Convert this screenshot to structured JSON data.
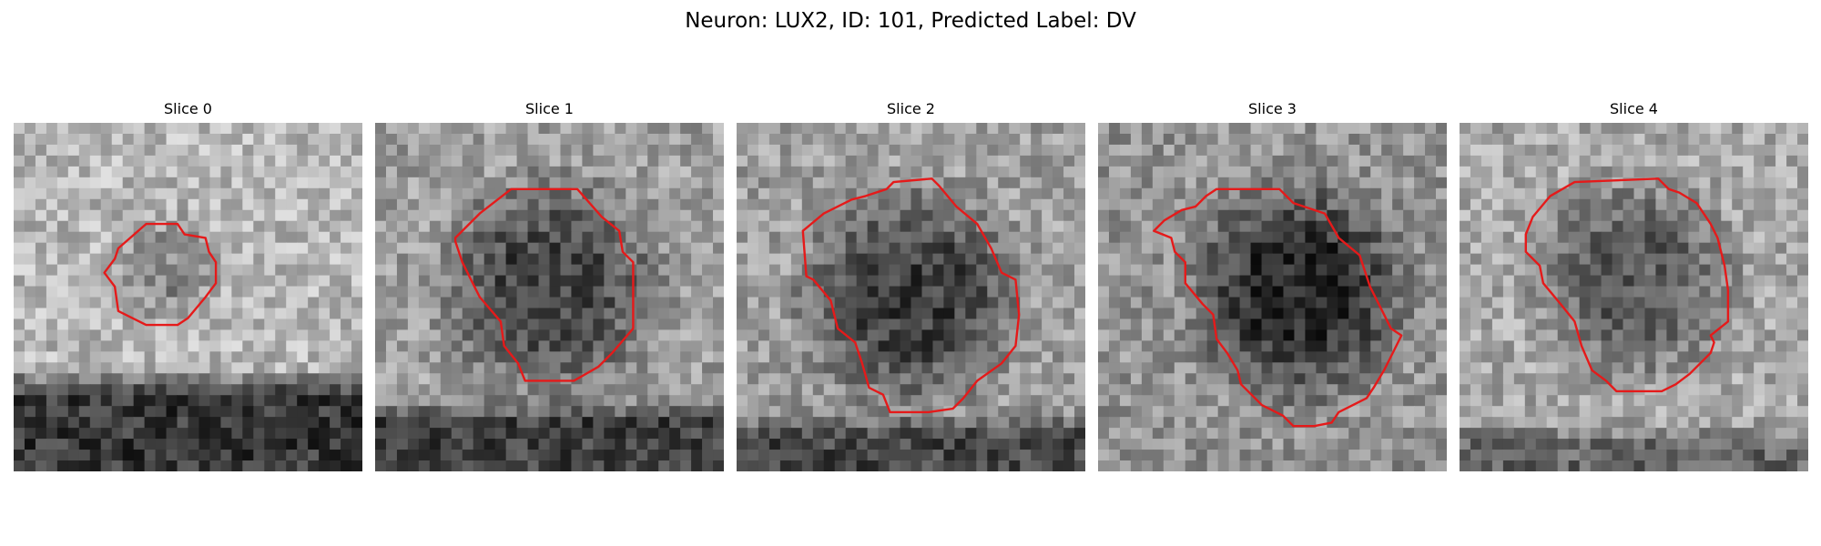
{
  "figure": {
    "title": "Neuron: LUX2, ID: 101, Predicted Label: DV"
  },
  "colors": {
    "contour": "#e51a1a",
    "background": "#ffffff"
  },
  "panels": [
    {
      "label": "Slice 0",
      "tone": {
        "base": 0.72,
        "blob_center": [
          0.45,
          0.42
        ],
        "blob_radius": 0.15,
        "blob_depth": 0.18,
        "bottom_dark_from": 0.7,
        "bottom_level": 0.22
      },
      "contour": [
        [
          0.38,
          0.29
        ],
        [
          0.47,
          0.29
        ],
        [
          0.49,
          0.32
        ],
        [
          0.55,
          0.33
        ],
        [
          0.56,
          0.37
        ],
        [
          0.58,
          0.4
        ],
        [
          0.58,
          0.46
        ],
        [
          0.55,
          0.5
        ],
        [
          0.5,
          0.56
        ],
        [
          0.47,
          0.58
        ],
        [
          0.38,
          0.58
        ],
        [
          0.3,
          0.54
        ],
        [
          0.29,
          0.47
        ],
        [
          0.26,
          0.43
        ],
        [
          0.29,
          0.39
        ],
        [
          0.3,
          0.36
        ]
      ]
    },
    {
      "label": "Slice 1",
      "tone": {
        "base": 0.62,
        "blob_center": [
          0.5,
          0.47
        ],
        "blob_radius": 0.3,
        "blob_depth": 0.35,
        "bottom_dark_from": 0.78,
        "bottom_level": 0.25
      },
      "contour": [
        [
          0.39,
          0.19
        ],
        [
          0.58,
          0.19
        ],
        [
          0.65,
          0.27
        ],
        [
          0.7,
          0.31
        ],
        [
          0.71,
          0.37
        ],
        [
          0.74,
          0.4
        ],
        [
          0.74,
          0.59
        ],
        [
          0.68,
          0.66
        ],
        [
          0.64,
          0.7
        ],
        [
          0.57,
          0.74
        ],
        [
          0.43,
          0.74
        ],
        [
          0.41,
          0.69
        ],
        [
          0.37,
          0.64
        ],
        [
          0.36,
          0.57
        ],
        [
          0.3,
          0.5
        ],
        [
          0.28,
          0.46
        ],
        [
          0.25,
          0.4
        ],
        [
          0.23,
          0.34
        ],
        [
          0.23,
          0.33
        ],
        [
          0.3,
          0.26
        ]
      ]
    },
    {
      "label": "Slice 2",
      "tone": {
        "base": 0.62,
        "blob_center": [
          0.5,
          0.5
        ],
        "blob_radius": 0.3,
        "blob_depth": 0.38,
        "bottom_dark_from": 0.82,
        "bottom_level": 0.28
      },
      "contour": [
        [
          0.43,
          0.19
        ],
        [
          0.45,
          0.17
        ],
        [
          0.56,
          0.16
        ],
        [
          0.58,
          0.18
        ],
        [
          0.63,
          0.24
        ],
        [
          0.69,
          0.29
        ],
        [
          0.73,
          0.36
        ],
        [
          0.76,
          0.43
        ],
        [
          0.8,
          0.45
        ],
        [
          0.81,
          0.55
        ],
        [
          0.8,
          0.64
        ],
        [
          0.76,
          0.69
        ],
        [
          0.69,
          0.74
        ],
        [
          0.65,
          0.79
        ],
        [
          0.62,
          0.82
        ],
        [
          0.55,
          0.83
        ],
        [
          0.44,
          0.83
        ],
        [
          0.42,
          0.78
        ],
        [
          0.38,
          0.76
        ],
        [
          0.36,
          0.69
        ],
        [
          0.34,
          0.63
        ],
        [
          0.29,
          0.59
        ],
        [
          0.27,
          0.51
        ],
        [
          0.22,
          0.45
        ],
        [
          0.2,
          0.44
        ],
        [
          0.19,
          0.31
        ],
        [
          0.25,
          0.26
        ],
        [
          0.29,
          0.24
        ],
        [
          0.33,
          0.22
        ],
        [
          0.37,
          0.21
        ]
      ]
    },
    {
      "label": "Slice 3",
      "tone": {
        "base": 0.58,
        "blob_center": [
          0.58,
          0.48
        ],
        "blob_radius": 0.3,
        "blob_depth": 0.42,
        "bottom_dark_from": 0.9,
        "bottom_level": 0.55
      },
      "contour": [
        [
          0.34,
          0.19
        ],
        [
          0.52,
          0.19
        ],
        [
          0.56,
          0.23
        ],
        [
          0.65,
          0.26
        ],
        [
          0.69,
          0.33
        ],
        [
          0.75,
          0.38
        ],
        [
          0.78,
          0.47
        ],
        [
          0.82,
          0.55
        ],
        [
          0.84,
          0.59
        ],
        [
          0.87,
          0.61
        ],
        [
          0.85,
          0.65
        ],
        [
          0.82,
          0.71
        ],
        [
          0.79,
          0.76
        ],
        [
          0.77,
          0.79
        ],
        [
          0.69,
          0.83
        ],
        [
          0.67,
          0.86
        ],
        [
          0.62,
          0.87
        ],
        [
          0.56,
          0.87
        ],
        [
          0.53,
          0.84
        ],
        [
          0.47,
          0.81
        ],
        [
          0.44,
          0.78
        ],
        [
          0.41,
          0.75
        ],
        [
          0.4,
          0.71
        ],
        [
          0.37,
          0.66
        ],
        [
          0.34,
          0.62
        ],
        [
          0.33,
          0.55
        ],
        [
          0.3,
          0.52
        ],
        [
          0.25,
          0.46
        ],
        [
          0.25,
          0.4
        ],
        [
          0.22,
          0.37
        ],
        [
          0.21,
          0.33
        ],
        [
          0.16,
          0.31
        ],
        [
          0.19,
          0.28
        ],
        [
          0.24,
          0.25
        ],
        [
          0.28,
          0.24
        ],
        [
          0.31,
          0.21
        ]
      ]
    },
    {
      "label": "Slice 4",
      "tone": {
        "base": 0.66,
        "blob_center": [
          0.5,
          0.45
        ],
        "blob_radius": 0.28,
        "blob_depth": 0.3,
        "bottom_dark_from": 0.85,
        "bottom_level": 0.4
      },
      "contour": [
        [
          0.33,
          0.17
        ],
        [
          0.57,
          0.16
        ],
        [
          0.6,
          0.19
        ],
        [
          0.63,
          0.2
        ],
        [
          0.68,
          0.23
        ],
        [
          0.72,
          0.29
        ],
        [
          0.74,
          0.33
        ],
        [
          0.76,
          0.41
        ],
        [
          0.77,
          0.48
        ],
        [
          0.77,
          0.57
        ],
        [
          0.72,
          0.61
        ],
        [
          0.73,
          0.63
        ],
        [
          0.72,
          0.66
        ],
        [
          0.66,
          0.72
        ],
        [
          0.62,
          0.75
        ],
        [
          0.58,
          0.77
        ],
        [
          0.45,
          0.77
        ],
        [
          0.42,
          0.74
        ],
        [
          0.38,
          0.71
        ],
        [
          0.35,
          0.64
        ],
        [
          0.33,
          0.57
        ],
        [
          0.29,
          0.52
        ],
        [
          0.24,
          0.46
        ],
        [
          0.23,
          0.41
        ],
        [
          0.19,
          0.37
        ],
        [
          0.19,
          0.32
        ],
        [
          0.21,
          0.27
        ],
        [
          0.26,
          0.21
        ]
      ]
    }
  ]
}
